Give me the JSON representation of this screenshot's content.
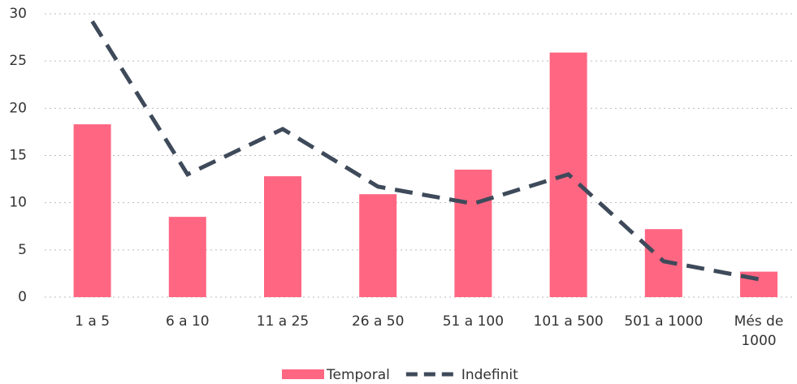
{
  "chart_data": {
    "type": "bar",
    "categories": [
      "1 a 5",
      "6 a 10",
      "11 a 25",
      "26 a 50",
      "51 a 100",
      "101 a 500",
      "501 a 1000",
      "Més de 1000"
    ],
    "series": [
      {
        "name": "Temporal",
        "type": "bar",
        "color": "#ff6682",
        "values": [
          18.3,
          8.5,
          12.8,
          10.9,
          13.5,
          25.9,
          7.2,
          2.7
        ]
      },
      {
        "name": "Indefinit",
        "type": "line",
        "color": "#3e4a5a",
        "values": [
          29.2,
          13.0,
          17.8,
          11.7,
          9.9,
          13.0,
          3.8,
          1.9
        ]
      }
    ],
    "ylim": [
      0,
      30
    ],
    "yticks": [
      0,
      5,
      10,
      15,
      20,
      25,
      30
    ],
    "grid": true,
    "legend": "bottom"
  }
}
